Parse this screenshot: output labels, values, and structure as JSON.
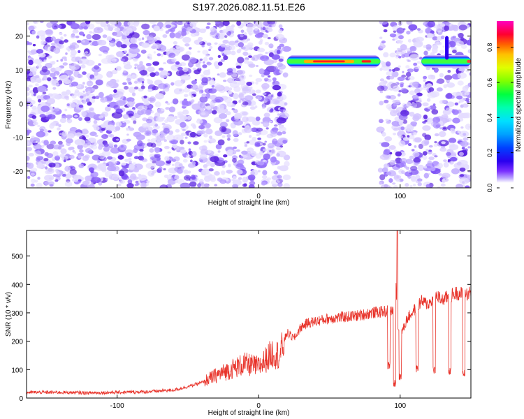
{
  "chart_data": [
    {
      "type": "heatmap",
      "title": "S197.2026.082.11.51.E26",
      "xlabel": "Height of straight line (km)",
      "ylabel": "Frequency (Hz)",
      "xlim": [
        -164,
        150
      ],
      "ylim": [
        -25,
        24.5
      ],
      "xticks": [
        -100,
        0,
        100
      ],
      "xtick_labels": [
        "-100",
        "0",
        "100"
      ],
      "yticks": [
        -20,
        -10,
        0,
        10,
        20
      ],
      "ytick_labels": [
        "-20",
        "-10",
        "0",
        "10",
        "20"
      ],
      "colorbar": {
        "label": "Normalized spectral amplitude",
        "range": [
          0.0,
          0.95
        ],
        "ticks": [
          0.0,
          0.2,
          0.4,
          0.6,
          0.8
        ],
        "tick_labels": [
          "0.0",
          "0.2",
          "0.4",
          "0.6",
          "0.8"
        ]
      },
      "noise_regions_km": [
        [
          -164,
          20
        ],
        [
          86,
          115
        ],
        [
          117,
          150
        ]
      ],
      "signal_tracks": [
        {
          "x_start_km": 20,
          "x_end_km": 86,
          "freq_hz": 12.5,
          "peak_amplitude": 0.85
        },
        {
          "x_start_km": 115,
          "x_end_km": 150,
          "freq_hz": 12.5,
          "peak_amplitude": 0.9
        }
      ]
    },
    {
      "type": "line",
      "xlabel": "Height of straight line (km)",
      "ylabel": "SNR (10 * v/v)",
      "xlim": [
        -164,
        150
      ],
      "ylim": [
        0,
        590
      ],
      "xticks": [
        -100,
        0,
        100
      ],
      "xtick_labels": [
        "-100",
        "0",
        "100"
      ],
      "yticks": [
        0,
        100,
        200,
        300,
        400,
        500
      ],
      "ytick_labels": [
        "0",
        "100",
        "200",
        "300",
        "400",
        "500"
      ],
      "series": [
        {
          "name": "SNR",
          "color": "#e8332a",
          "x": [
            -164,
            -140,
            -120,
            -100,
            -80,
            -60,
            -50,
            -40,
            -30,
            -20,
            -10,
            0,
            10,
            15,
            18,
            20,
            25,
            30,
            35,
            40,
            50,
            60,
            70,
            80,
            90,
            93,
            95,
            97,
            98,
            100,
            102,
            105,
            110,
            115,
            120,
            125,
            130,
            135,
            140,
            145,
            150
          ],
          "values": [
            20,
            20,
            18,
            20,
            22,
            28,
            40,
            55,
            80,
            100,
            120,
            110,
            160,
            150,
            200,
            230,
            210,
            250,
            265,
            270,
            280,
            285,
            290,
            300,
            305,
            310,
            300,
            420,
            250,
            230,
            240,
            280,
            310,
            340,
            330,
            360,
            345,
            360,
            370,
            365,
            370
          ]
        }
      ],
      "dips": [
        {
          "x": 92,
          "value": 100
        },
        {
          "x": 96,
          "value": 40
        },
        {
          "x": 100,
          "value": 60
        },
        {
          "x": 112,
          "value": 90
        },
        {
          "x": 124,
          "value": 85
        },
        {
          "x": 135,
          "value": 80
        },
        {
          "x": 145,
          "value": 75
        }
      ],
      "spike": {
        "x": 98,
        "value": 590
      }
    }
  ]
}
